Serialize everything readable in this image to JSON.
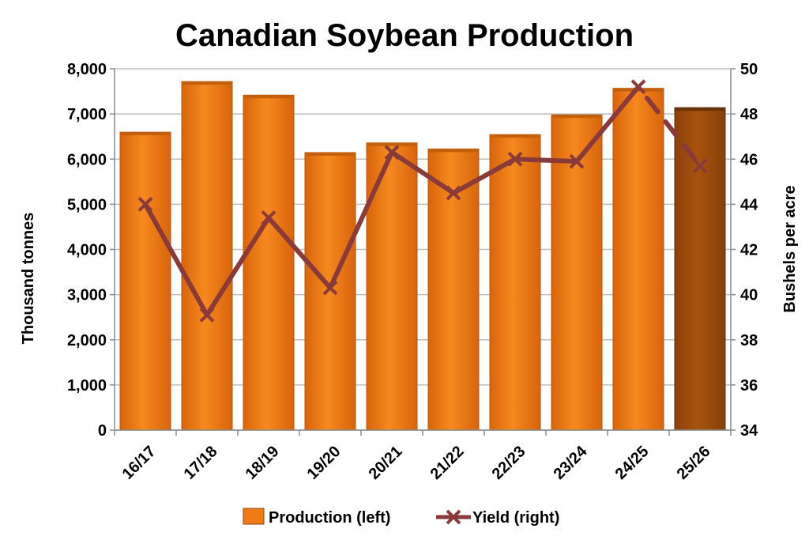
{
  "chart_data": {
    "type": "bar",
    "title": "Canadian Soybean Production",
    "categories": [
      "16/17",
      "17/18",
      "18/19",
      "19/20",
      "20/21",
      "21/22",
      "22/23",
      "23/24",
      "24/25",
      "25/26"
    ],
    "series": [
      {
        "name": "Production (left)",
        "type": "bar",
        "axis": "left",
        "values": [
          6597,
          7717,
          7417,
          6145,
          6359,
          6225,
          6543,
          6981,
          7568,
          7140
        ],
        "color": "#F07A14",
        "highlight_last_color": "#A34D0C"
      },
      {
        "name": "Yield (right)",
        "type": "line",
        "axis": "right",
        "values": [
          44.0,
          39.1,
          43.4,
          40.3,
          46.3,
          44.5,
          46.0,
          45.9,
          49.2,
          45.7
        ],
        "color": "#8B3A3A",
        "dashed_last_segment": true,
        "marker": "x"
      }
    ],
    "y_left": {
      "label": "Thousand tonnes",
      "range": [
        0,
        8000
      ],
      "ticks": [
        "0",
        "1,000",
        "2,000",
        "3,000",
        "4,000",
        "5,000",
        "6,000",
        "7,000",
        "8,000"
      ]
    },
    "y_right": {
      "label": "Bushels per acre",
      "range": [
        34,
        50
      ],
      "ticks": [
        "34",
        "36",
        "38",
        "40",
        "42",
        "44",
        "46",
        "48",
        "50"
      ]
    },
    "grid": "horizontal",
    "legend": "bottom"
  }
}
